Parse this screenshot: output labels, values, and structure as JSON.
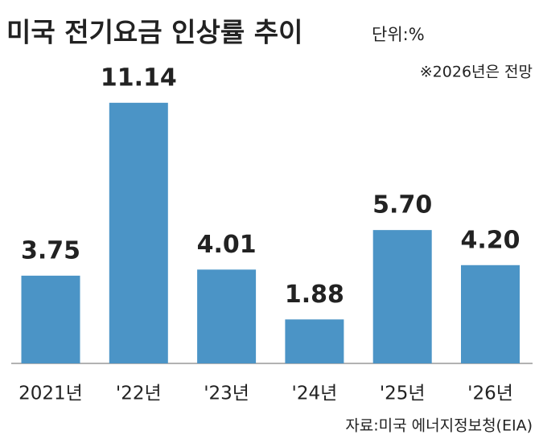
{
  "chart_data": {
    "type": "bar",
    "title": "미국 전기요금 인상률 추이",
    "unit": "단위:%",
    "note": "※2026년은 전망",
    "source": "자료:미국 에너지정보청(EIA)",
    "categories": [
      "2021년",
      "'22년",
      "'23년",
      "'24년",
      "'25년",
      "'26년"
    ],
    "values": [
      3.75,
      11.14,
      4.01,
      1.88,
      5.7,
      4.2
    ],
    "value_labels": [
      "3.75",
      "11.14",
      "4.01",
      "1.88",
      "5.70",
      "4.20"
    ],
    "color": "#4b94c6"
  }
}
